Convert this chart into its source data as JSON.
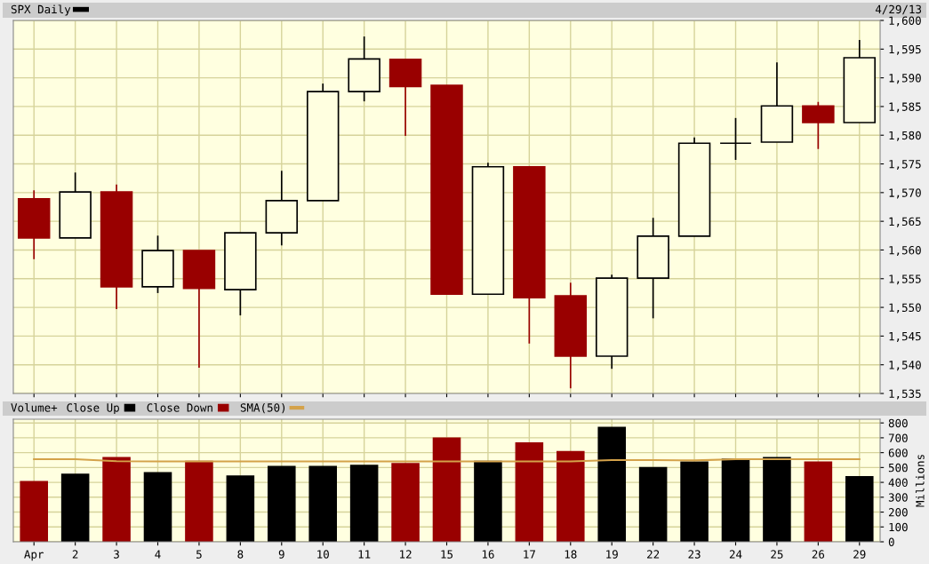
{
  "chart_data": [
    {
      "type": "candlestick",
      "annotations": [
        "4/29/13"
      ],
      "categories": [
        null,
        null,
        null,
        null,
        null,
        null,
        null,
        null,
        null,
        null,
        null,
        null,
        null,
        null,
        null,
        null,
        null,
        null,
        null,
        null,
        null
      ],
      "series": [
        {
          "name": "SPX Daily",
          "color": "#000000",
          "colors": [
            "#990000",
            "#000000",
            "#990000",
            "#000000",
            "#990000",
            "#000000",
            "#000000",
            "#000000",
            "#000000",
            "#990000",
            "#990000",
            "#000000",
            "#990000",
            "#990000",
            "#000000",
            "#000000",
            "#000000",
            "#000000",
            "#000000",
            "#990000",
            "#000000"
          ],
          "ohlc": [
            [
              1568.9,
              1570.4,
              1558.4,
              1562.1
            ],
            [
              1562.1,
              1573.5,
              1562.1,
              1570.1
            ],
            [
              1570.1,
              1571.4,
              1549.7,
              1553.6
            ],
            [
              1553.6,
              1562.5,
              1552.5,
              1559.9
            ],
            [
              1559.9,
              1559.9,
              1539.5,
              1553.3
            ],
            [
              1553.1,
              1563.0,
              1548.6,
              1563.0
            ],
            [
              1563.0,
              1573.8,
              1560.8,
              1568.6
            ],
            [
              1568.6,
              1589.0,
              1568.6,
              1587.6
            ],
            [
              1587.6,
              1597.2,
              1585.9,
              1593.3
            ],
            [
              1593.2,
              1593.2,
              1579.9,
              1588.5
            ],
            [
              1588.7,
              1588.7,
              1552.2,
              1552.3
            ],
            [
              1552.3,
              1575.2,
              1552.3,
              1574.5
            ],
            [
              1574.5,
              1574.5,
              1543.7,
              1551.7
            ],
            [
              1552.0,
              1554.3,
              1535.9,
              1541.5
            ],
            [
              1541.5,
              1555.7,
              1539.3,
              1555.1
            ],
            [
              1555.1,
              1565.6,
              1548.1,
              1562.4
            ],
            [
              1562.4,
              1579.6,
              1562.4,
              1578.6
            ],
            [
              1578.6,
              1583.0,
              1575.7,
              1578.6
            ],
            [
              1578.8,
              1592.7,
              1578.8,
              1585.1
            ],
            [
              1585.1,
              1585.8,
              1577.6,
              1582.2
            ],
            [
              1582.2,
              1596.6,
              1582.2,
              1593.5
            ]
          ]
        }
      ],
      "ylim": [
        1535,
        1600
      ],
      "yticks": [
        {
          "value": 1535,
          "label": "1,535"
        },
        {
          "value": 1540,
          "label": "1,540"
        },
        {
          "value": 1545,
          "label": "1,545"
        },
        {
          "value": 1550,
          "label": "1,550"
        },
        {
          "value": 1555,
          "label": "1,555"
        },
        {
          "value": 1560,
          "label": "1,560"
        },
        {
          "value": 1565,
          "label": "1,565"
        },
        {
          "value": 1570,
          "label": "1,570"
        },
        {
          "value": 1575,
          "label": "1,575"
        },
        {
          "value": 1580,
          "label": "1,580"
        },
        {
          "value": 1585,
          "label": "1,585"
        },
        {
          "value": 1590,
          "label": "1,590"
        },
        {
          "value": 1595,
          "label": "1,595"
        },
        {
          "value": 1600,
          "label": "1,600"
        }
      ],
      "tick_labels": "y",
      "grid": true,
      "legend": "top left"
    },
    {
      "type": "bar",
      "title": "Volume+",
      "ylabel": "Millions",
      "categories": [
        "Apr",
        "2",
        "3",
        "4",
        "5",
        "8",
        "9",
        "10",
        "11",
        "12",
        "15",
        "16",
        "17",
        "18",
        "19",
        "22",
        "23",
        "24",
        "25",
        "26",
        "29"
      ],
      "series": [
        {
          "name": "Close Up",
          "color": "#000000",
          "values": [
            null,
            459,
            null,
            470,
            null,
            447,
            511,
            511,
            518,
            null,
            null,
            545,
            null,
            null,
            774,
            504,
            541,
            560,
            571,
            null,
            443
          ]
        },
        {
          "name": "Close Down",
          "color": "#990000",
          "values": [
            410,
            null,
            571,
            null,
            545,
            null,
            null,
            null,
            null,
            530,
            703,
            null,
            669,
            612,
            null,
            null,
            null,
            null,
            null,
            541,
            null
          ]
        },
        {
          "name": "SMA(50)",
          "type": "line",
          "color": "#d4a24a",
          "values": [
            556,
            556,
            543,
            541,
            541,
            541,
            541,
            541,
            541,
            541,
            541,
            541,
            541,
            541,
            550,
            550,
            548,
            556,
            556,
            556,
            556
          ]
        }
      ],
      "ylim": [
        0,
        825
      ],
      "yticks": [
        0,
        100,
        200,
        300,
        400,
        500,
        600,
        700,
        800
      ],
      "grid": true,
      "legend": "top left"
    }
  ]
}
